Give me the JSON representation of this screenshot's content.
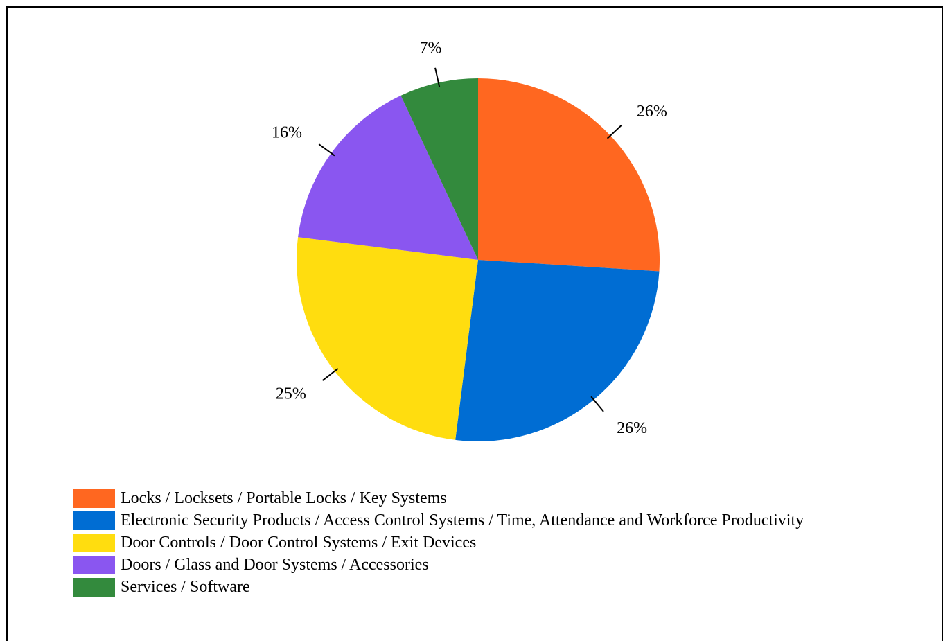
{
  "chart_data": {
    "type": "pie",
    "title": "",
    "legend_position": "bottom-left",
    "slices": [
      {
        "name": "Locks / Locksets / Portable Locks / Key Systems",
        "value": 26,
        "label": "26%",
        "color": "#FF6720"
      },
      {
        "name": "Electronic Security Products / Access Control Systems / Time, Attendance and Workforce Productivity",
        "value": 26,
        "label": "26%",
        "color": "#006DD3"
      },
      {
        "name": "Door Controls / Door Control Systems / Exit Devices",
        "value": 25,
        "label": "25%",
        "color": "#FFDD0F"
      },
      {
        "name": "Doors / Glass and Door Systems / Accessories",
        "value": 16,
        "label": "16%",
        "color": "#8A56F0"
      },
      {
        "name": "Services / Software",
        "value": 7,
        "label": "7%",
        "color": "#338A3D"
      }
    ]
  }
}
